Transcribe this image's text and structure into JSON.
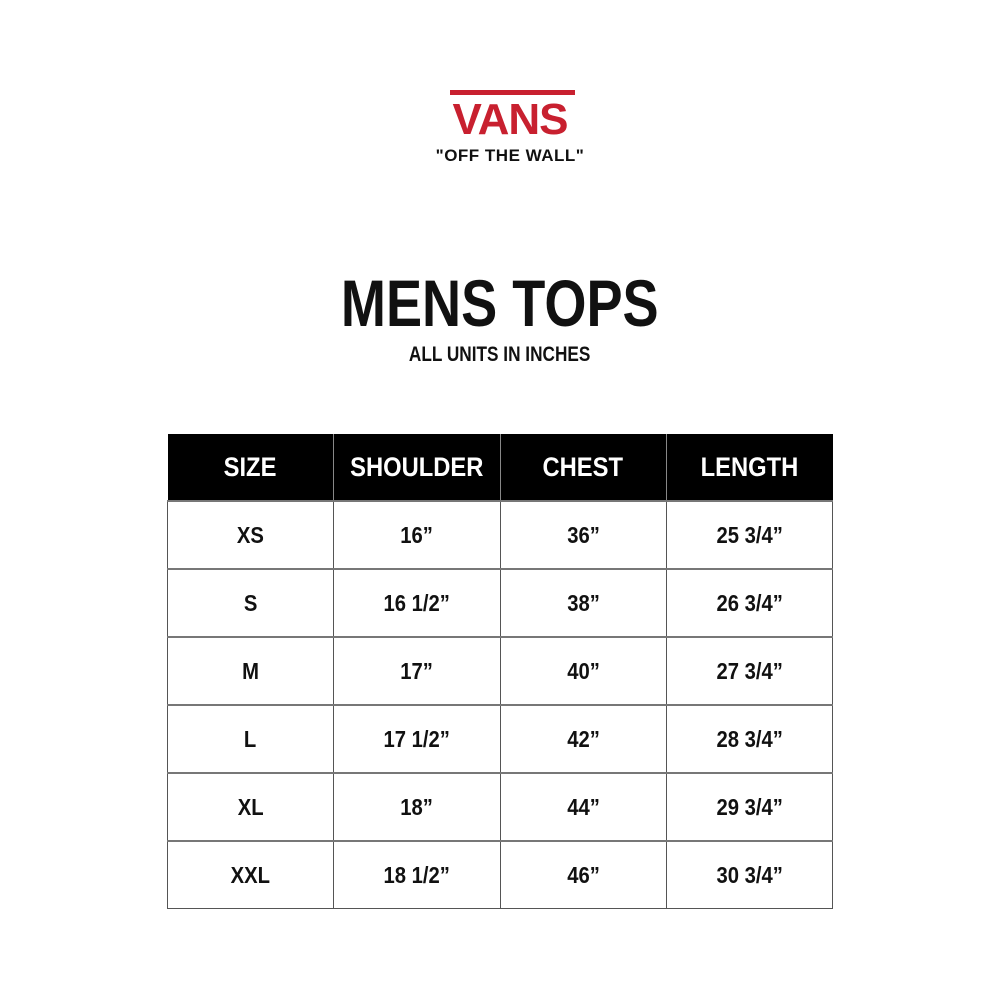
{
  "brand": {
    "logo_text": "VANS",
    "tagline": "\"OFF THE WALL\"",
    "accent_color": "#c8202f"
  },
  "title": "MENS TOPS",
  "subtitle": "ALL UNITS IN INCHES",
  "table": {
    "headers": [
      "SIZE",
      "SHOULDER",
      "CHEST",
      "LENGTH"
    ],
    "rows": [
      [
        "XS",
        "16”",
        "36”",
        "25 3/4”"
      ],
      [
        "S",
        "16 1/2”",
        "38”",
        "26 3/4”"
      ],
      [
        "M",
        "17”",
        "40”",
        "27 3/4”"
      ],
      [
        "L",
        "17 1/2”",
        "42”",
        "28 3/4”"
      ],
      [
        "XL",
        "18”",
        "44”",
        "29 3/4”"
      ],
      [
        "XXL",
        "18 1/2”",
        "46”",
        "30 3/4”"
      ]
    ]
  }
}
